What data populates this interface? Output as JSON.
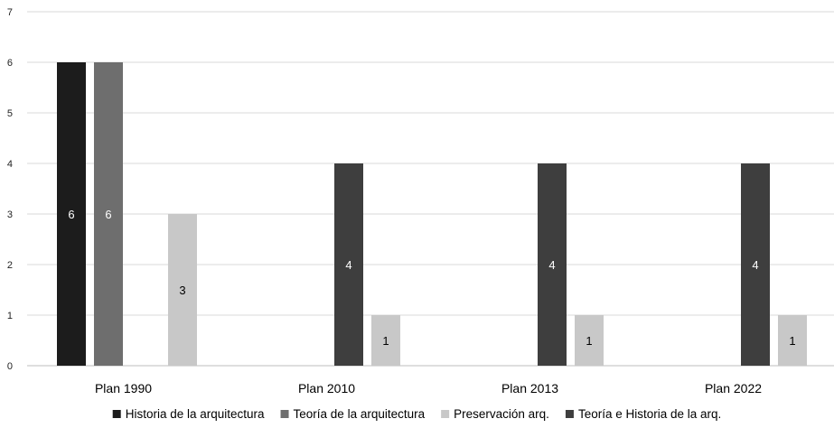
{
  "chart_data": {
    "type": "bar",
    "categories": [
      "Plan 1990",
      "Plan 2010",
      "Plan 2013",
      "Plan 2022"
    ],
    "series": [
      {
        "name": "Historia de la arquitectura",
        "values": [
          6,
          null,
          null,
          null
        ],
        "color": "#1c1c1c"
      },
      {
        "name": "Teoría de la arquitectura",
        "values": [
          6,
          null,
          null,
          null
        ],
        "color": "#6e6e6e"
      },
      {
        "name": "Preservación arq.",
        "values": [
          3,
          1,
          1,
          1
        ],
        "color": "#c8c8c8"
      },
      {
        "name": "Teoría e Historia de la arq.",
        "values": [
          null,
          4,
          4,
          4
        ],
        "color": "#3e3e3e"
      }
    ],
    "bar_order": [
      0,
      1,
      3,
      2
    ],
    "data_labels": true,
    "yticks": [
      0,
      1,
      2,
      3,
      4,
      5,
      6,
      7
    ],
    "ylim": [
      0,
      7
    ],
    "grid": "horizontal",
    "legend_position": "bottom",
    "title": "",
    "xlabel": "",
    "ylabel": ""
  }
}
